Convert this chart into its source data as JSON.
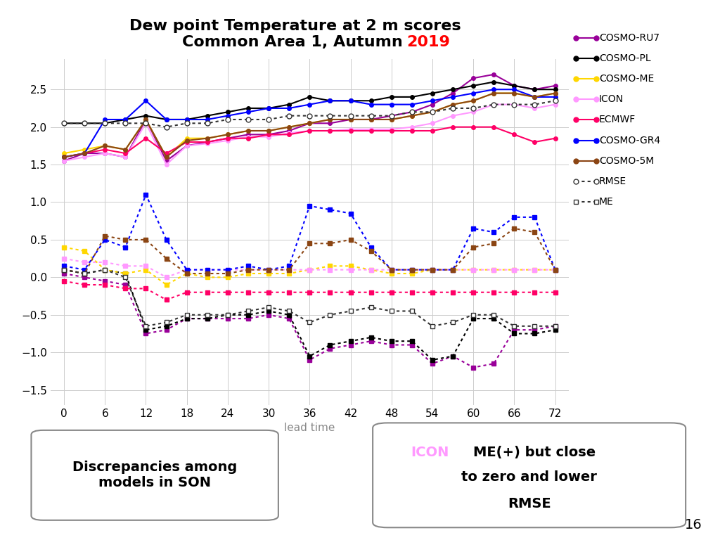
{
  "title_line1": "Dew point Temperature at 2 m scores",
  "title_line2": "Common Area 1, Autumn ",
  "title_year": "2019",
  "xlabel": "lead time",
  "x_ticks": [
    0,
    6,
    12,
    18,
    24,
    30,
    36,
    42,
    48,
    54,
    60,
    66,
    72
  ],
  "ylim": [
    -1.7,
    2.9
  ],
  "yticks": [
    -1.5,
    -1.0,
    -0.5,
    0,
    0.5,
    1.0,
    1.5,
    2.0,
    2.5
  ],
  "rmse_series": [
    {
      "label": "COSMO-RU7",
      "color": "#990099",
      "x": [
        0,
        3,
        6,
        9,
        12,
        15,
        18,
        21,
        24,
        27,
        30,
        33,
        36,
        39,
        42,
        45,
        48,
        51,
        54,
        57,
        60,
        63,
        66,
        69,
        72
      ],
      "y": [
        1.55,
        1.65,
        1.65,
        1.6,
        2.1,
        1.55,
        1.75,
        1.8,
        1.85,
        1.9,
        1.9,
        1.95,
        2.05,
        2.05,
        2.1,
        2.1,
        2.15,
        2.2,
        2.3,
        2.45,
        2.65,
        2.7,
        2.55,
        2.5,
        2.55
      ]
    },
    {
      "label": "COSMO-PL",
      "color": "#000000",
      "x": [
        0,
        3,
        6,
        9,
        12,
        15,
        18,
        21,
        24,
        27,
        30,
        33,
        36,
        39,
        42,
        45,
        48,
        51,
        54,
        57,
        60,
        63,
        66,
        69,
        72
      ],
      "y": [
        2.05,
        2.05,
        2.05,
        2.1,
        2.15,
        2.1,
        2.1,
        2.15,
        2.2,
        2.25,
        2.25,
        2.3,
        2.4,
        2.35,
        2.35,
        2.35,
        2.4,
        2.4,
        2.45,
        2.5,
        2.55,
        2.6,
        2.55,
        2.5,
        2.5
      ]
    },
    {
      "label": "COSMO-ME",
      "color": "#FFD700",
      "x": [
        0,
        3,
        6,
        9,
        12,
        15,
        18,
        21,
        24,
        27,
        30,
        33,
        36,
        39,
        42,
        45,
        48,
        51,
        54,
        57,
        60,
        63,
        66,
        69,
        72
      ],
      "y": [
        1.65,
        1.7,
        1.75,
        1.7,
        2.1,
        1.6,
        1.85,
        1.85,
        1.9,
        1.95,
        1.95,
        2.0,
        2.05,
        2.1,
        2.1,
        2.1,
        2.1,
        2.15,
        2.2,
        2.3,
        2.35,
        2.45,
        2.45,
        2.4,
        2.45
      ]
    },
    {
      "label": "ICON",
      "color": "#FF99FF",
      "x": [
        0,
        3,
        6,
        9,
        12,
        15,
        18,
        21,
        24,
        27,
        30,
        33,
        36,
        39,
        42,
        45,
        48,
        51,
        54,
        57,
        60,
        63,
        66,
        69,
        72
      ],
      "y": [
        1.55,
        1.6,
        1.65,
        1.6,
        2.05,
        1.5,
        1.75,
        1.78,
        1.82,
        1.87,
        1.87,
        1.92,
        1.95,
        1.95,
        1.97,
        1.97,
        1.97,
        2.0,
        2.05,
        2.15,
        2.2,
        2.3,
        2.3,
        2.25,
        2.3
      ]
    },
    {
      "label": "ECMWF",
      "color": "#FF0066",
      "x": [
        0,
        3,
        6,
        9,
        12,
        15,
        18,
        21,
        24,
        27,
        30,
        33,
        36,
        39,
        42,
        45,
        48,
        51,
        54,
        57,
        60,
        63,
        66,
        69,
        72
      ],
      "y": [
        1.6,
        1.65,
        1.7,
        1.65,
        1.85,
        1.65,
        1.8,
        1.8,
        1.85,
        1.85,
        1.9,
        1.9,
        1.95,
        1.95,
        1.95,
        1.95,
        1.95,
        1.95,
        1.95,
        2.0,
        2.0,
        2.0,
        1.9,
        1.8,
        1.85
      ]
    },
    {
      "label": "COSMO-GR4",
      "color": "#0000FF",
      "x": [
        0,
        3,
        6,
        9,
        12,
        15,
        18,
        21,
        24,
        27,
        30,
        33,
        36,
        39,
        42,
        45,
        48,
        51,
        54,
        57,
        60,
        63,
        66,
        69,
        72
      ],
      "y": [
        1.6,
        1.65,
        2.1,
        2.1,
        2.35,
        2.1,
        2.1,
        2.1,
        2.15,
        2.2,
        2.25,
        2.25,
        2.3,
        2.35,
        2.35,
        2.3,
        2.3,
        2.3,
        2.35,
        2.4,
        2.45,
        2.5,
        2.5,
        2.4,
        2.4
      ]
    },
    {
      "label": "COSMO-5M",
      "color": "#8B4513",
      "x": [
        0,
        3,
        6,
        9,
        12,
        15,
        18,
        21,
        24,
        27,
        30,
        33,
        36,
        39,
        42,
        45,
        48,
        51,
        54,
        57,
        60,
        63,
        66,
        69,
        72
      ],
      "y": [
        1.6,
        1.65,
        1.75,
        1.7,
        2.1,
        1.6,
        1.82,
        1.85,
        1.9,
        1.95,
        1.95,
        2.0,
        2.05,
        2.1,
        2.1,
        2.1,
        2.1,
        2.15,
        2.2,
        2.3,
        2.35,
        2.45,
        2.45,
        2.4,
        2.45
      ]
    }
  ],
  "me_series": [
    {
      "label": "COSMO-RU7_me",
      "color": "#990099",
      "x": [
        0,
        3,
        6,
        9,
        12,
        15,
        18,
        21,
        24,
        27,
        30,
        33,
        36,
        39,
        42,
        45,
        48,
        51,
        54,
        57,
        60,
        63,
        66,
        69,
        72
      ],
      "y": [
        0.05,
        0.0,
        -0.05,
        -0.1,
        -0.75,
        -0.7,
        -0.55,
        -0.55,
        -0.55,
        -0.55,
        -0.5,
        -0.55,
        -1.1,
        -0.95,
        -0.9,
        -0.85,
        -0.9,
        -0.9,
        -1.15,
        -1.05,
        -1.2,
        -1.15,
        -0.7,
        -0.7,
        -0.65
      ]
    },
    {
      "label": "COSMO-PL_me",
      "color": "#000000",
      "x": [
        0,
        3,
        6,
        9,
        12,
        15,
        18,
        21,
        24,
        27,
        30,
        33,
        36,
        39,
        42,
        45,
        48,
        51,
        54,
        57,
        60,
        63,
        66,
        69,
        72
      ],
      "y": [
        0.1,
        0.05,
        0.1,
        0.05,
        -0.7,
        -0.65,
        -0.55,
        -0.55,
        -0.5,
        -0.5,
        -0.45,
        -0.5,
        -1.05,
        -0.9,
        -0.85,
        -0.8,
        -0.85,
        -0.85,
        -1.1,
        -1.05,
        -0.55,
        -0.55,
        -0.75,
        -0.75,
        -0.7
      ]
    },
    {
      "label": "COSMO-ME_me",
      "color": "#FFD700",
      "x": [
        0,
        3,
        6,
        9,
        12,
        15,
        18,
        21,
        24,
        27,
        30,
        33,
        36,
        39,
        42,
        45,
        48,
        51,
        54,
        57,
        60,
        63,
        66,
        69,
        72
      ],
      "y": [
        0.4,
        0.35,
        0.1,
        0.05,
        0.1,
        -0.1,
        0.05,
        0.0,
        0.0,
        0.05,
        0.05,
        0.05,
        0.1,
        0.15,
        0.15,
        0.1,
        0.05,
        0.05,
        0.1,
        0.1,
        0.1,
        0.1,
        0.1,
        0.1,
        0.1
      ]
    },
    {
      "label": "ICON_me",
      "color": "#FF99FF",
      "x": [
        0,
        3,
        6,
        9,
        12,
        15,
        18,
        21,
        24,
        27,
        30,
        33,
        36,
        39,
        42,
        45,
        48,
        51,
        54,
        57,
        60,
        63,
        66,
        69,
        72
      ],
      "y": [
        0.25,
        0.2,
        0.2,
        0.15,
        0.15,
        0.0,
        0.1,
        0.1,
        0.1,
        0.1,
        0.1,
        0.1,
        0.1,
        0.1,
        0.1,
        0.1,
        0.1,
        0.1,
        0.1,
        0.1,
        0.1,
        0.1,
        0.1,
        0.1,
        0.1
      ]
    },
    {
      "label": "ECMWF_me",
      "color": "#FF0066",
      "x": [
        0,
        3,
        6,
        9,
        12,
        15,
        18,
        21,
        24,
        27,
        30,
        33,
        36,
        39,
        42,
        45,
        48,
        51,
        54,
        57,
        60,
        63,
        66,
        69,
        72
      ],
      "y": [
        -0.05,
        -0.1,
        -0.1,
        -0.15,
        -0.15,
        -0.3,
        -0.2,
        -0.2,
        -0.2,
        -0.2,
        -0.2,
        -0.2,
        -0.2,
        -0.2,
        -0.2,
        -0.2,
        -0.2,
        -0.2,
        -0.2,
        -0.2,
        -0.2,
        -0.2,
        -0.2,
        -0.2,
        -0.2
      ]
    },
    {
      "label": "COSMO-GR4_me",
      "color": "#0000FF",
      "x": [
        0,
        3,
        6,
        9,
        12,
        15,
        18,
        21,
        24,
        27,
        30,
        33,
        36,
        39,
        42,
        45,
        48,
        51,
        54,
        57,
        60,
        63,
        66,
        69,
        72
      ],
      "y": [
        0.15,
        0.1,
        0.5,
        0.4,
        1.1,
        0.5,
        0.1,
        0.1,
        0.1,
        0.15,
        0.1,
        0.15,
        0.95,
        0.9,
        0.85,
        0.4,
        0.1,
        0.1,
        0.1,
        0.1,
        0.65,
        0.6,
        0.8,
        0.8,
        0.1
      ]
    },
    {
      "label": "COSMO-5M_me",
      "color": "#8B4513",
      "x": [
        0,
        3,
        6,
        9,
        12,
        15,
        18,
        21,
        24,
        27,
        30,
        33,
        36,
        39,
        42,
        45,
        48,
        51,
        54,
        57,
        60,
        63,
        66,
        69,
        72
      ],
      "y": [
        0.1,
        0.05,
        0.55,
        0.5,
        0.5,
        0.25,
        0.05,
        0.05,
        0.05,
        0.1,
        0.1,
        0.1,
        0.45,
        0.45,
        0.5,
        0.35,
        0.1,
        0.1,
        0.1,
        0.1,
        0.4,
        0.45,
        0.65,
        0.6,
        0.1
      ]
    }
  ],
  "agg_rmse": {
    "color": "#333333",
    "x": [
      0,
      3,
      6,
      9,
      12,
      15,
      18,
      21,
      24,
      27,
      30,
      33,
      36,
      39,
      42,
      45,
      48,
      51,
      54,
      57,
      60,
      63,
      66,
      69,
      72
    ],
    "y": [
      2.05,
      2.05,
      2.05,
      2.05,
      2.05,
      2.0,
      2.05,
      2.05,
      2.1,
      2.1,
      2.1,
      2.15,
      2.15,
      2.15,
      2.15,
      2.15,
      2.15,
      2.2,
      2.2,
      2.25,
      2.25,
      2.3,
      2.3,
      2.3,
      2.35
    ]
  },
  "agg_me": {
    "color": "#333333",
    "x": [
      0,
      3,
      6,
      9,
      12,
      15,
      18,
      21,
      24,
      27,
      30,
      33,
      36,
      39,
      42,
      45,
      48,
      51,
      54,
      57,
      60,
      63,
      66,
      69,
      72
    ],
    "y": [
      0.1,
      0.05,
      0.1,
      0.0,
      -0.65,
      -0.6,
      -0.5,
      -0.5,
      -0.5,
      -0.45,
      -0.4,
      -0.45,
      -0.6,
      -0.5,
      -0.45,
      -0.4,
      -0.45,
      -0.45,
      -0.65,
      -0.6,
      -0.5,
      -0.5,
      -0.65,
      -0.65,
      -0.65
    ]
  },
  "background_color": "#FFFFFF",
  "grid_color": "#CCCCCC",
  "title_color": "#000000",
  "year_color": "#FF0000",
  "title_fontsize": 16,
  "axis_fontsize": 11,
  "legend_fontsize": 10,
  "annotation_fontsize": 14,
  "box1_text": "Discrepancies among\nmodels in SON",
  "box2_color_icon": "#FF99FF",
  "page_number": "16"
}
